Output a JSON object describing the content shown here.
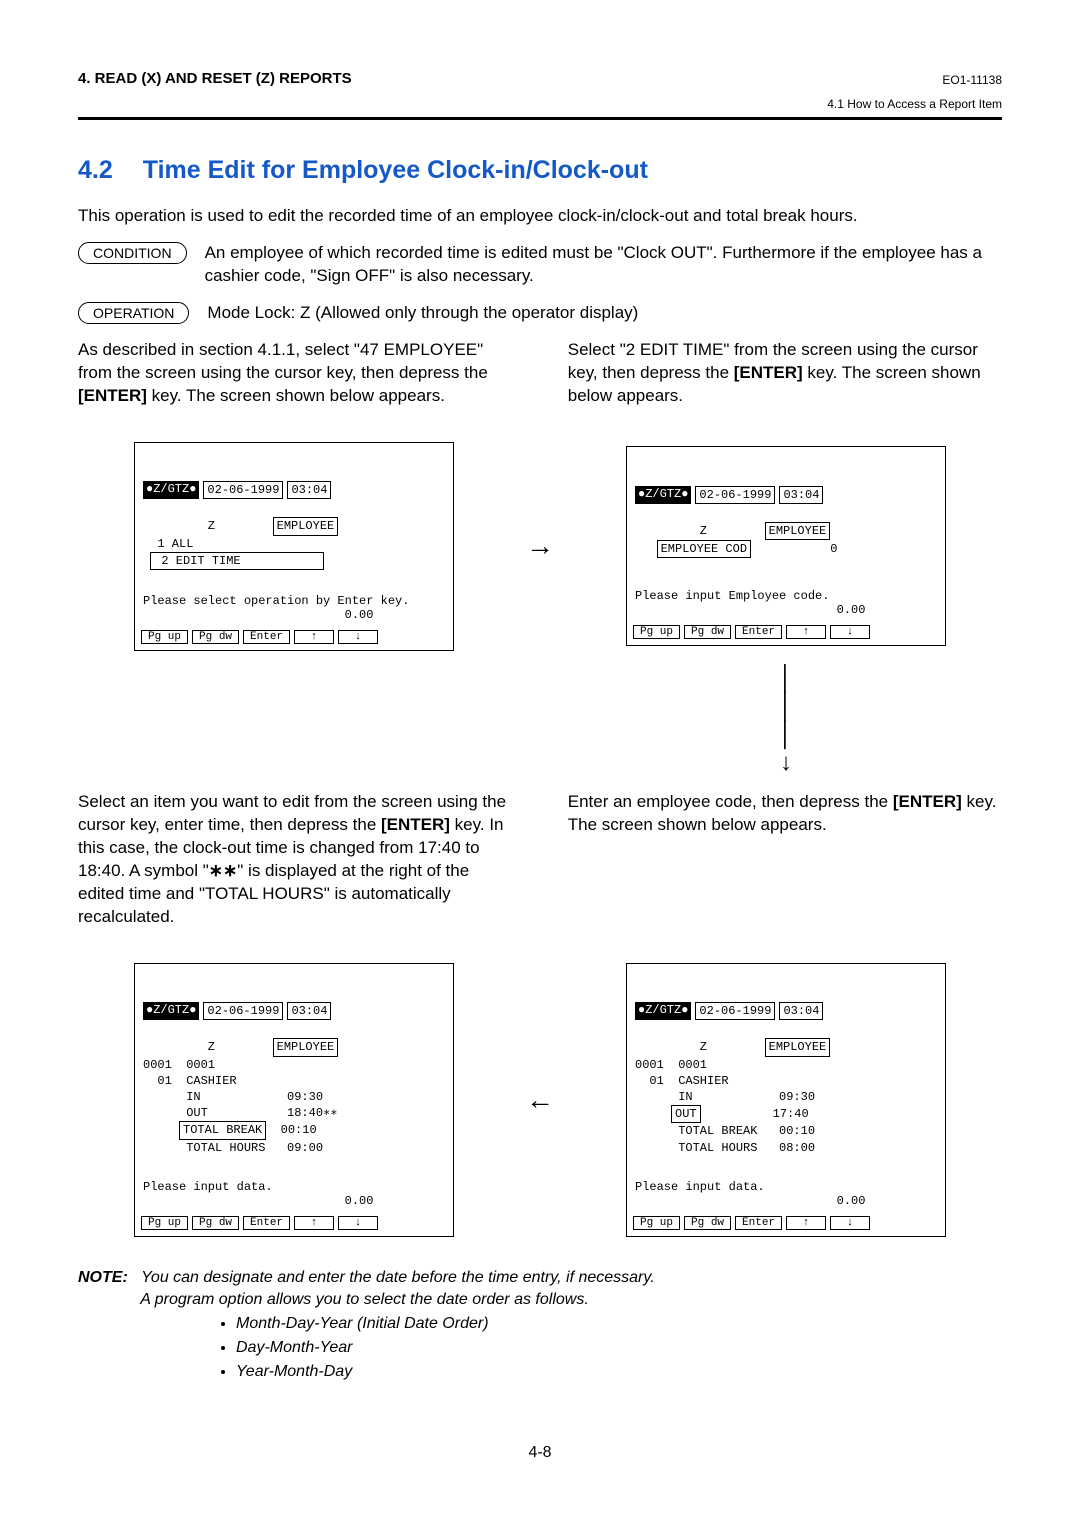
{
  "header": {
    "left": "4.   READ (X) AND RESET (Z) REPORTS",
    "right": "EO1-11138",
    "sub_right": "4.1  How to Access a Report Item"
  },
  "section": {
    "number": "4.2",
    "title": "Time Edit for Employee Clock-in/Clock-out"
  },
  "intro": "This operation is used to edit the recorded time of an employee clock-in/clock-out and total break hours.",
  "condition": {
    "label": "CONDITION",
    "text": "An employee of which recorded time is edited must be \"Clock OUT\". Furthermore if the employee has a cashier code, \"Sign OFF\" is also necessary."
  },
  "operation": {
    "label": "OPERATION",
    "text": "Mode Lock:  Z (Allowed only through the operator display)"
  },
  "left_para1_a": "As described in section 4.1.1, select \"47 EMPLOYEE\" from the screen using the cursor key, then depress the ",
  "left_para1_b": "[ENTER]",
  "left_para1_c": " key. The screen shown below appears.",
  "right_para1_a": "Select \"2 EDIT TIME\" from the screen using the cursor key, then depress the ",
  "right_para1_b": "[ENTER]",
  "right_para1_c": " key. The screen shown below appears.",
  "left_para2_a": "Select an item you want to edit from the screen using the cursor key, enter time, then depress the ",
  "left_para2_b": "[ENTER]",
  "left_para2_c": " key. In this case, the clock-out time is changed from 17:40 to 18:40. A symbol \"",
  "left_para2_d": "∗∗",
  "left_para2_e": "\" is displayed at the right of the edited time and \"TOTAL HOURS\" is automatically recalculated.",
  "right_para2_a": "Enter an employee code, then depress the ",
  "right_para2_b": "[ENTER]",
  "right_para2_c": " key. The screen shown below appears.",
  "topbar": {
    "a": "●Z/GTZ●",
    "b": "02-06-1999",
    "c": "03:04"
  },
  "screen1": {
    "body": " Z        |EMPLOYEE|\n  1 ALL\n | 2 EDIT TIME           |",
    "msg": "Please select operation by Enter key.\n                            0.00"
  },
  "screen2": {
    "body": " Z        |EMPLOYEE|\n   |EMPLOYEE COD|           0",
    "msg": "Please input Employee code.\n                            0.00"
  },
  "screen3": {
    "body": " Z        |EMPLOYEE|\n0001  0001\n  01  CASHIER\n      IN            09:30\n     |OUT|          17:40\n      TOTAL BREAK   00:10\n      TOTAL HOURS   08:00",
    "msg": "Please input data.\n                            0.00"
  },
  "screen4": {
    "body": " Z        |EMPLOYEE|\n0001  0001\n  01  CASHIER\n      IN            09:30\n      OUT           18:40∗∗\n     |TOTAL BREAK|  00:10\n      TOTAL HOURS   09:00",
    "msg": "Please input data.\n                            0.00"
  },
  "btns": {
    "pgup": "Pg up",
    "pgdw": "Pg dw",
    "enter": "Enter",
    "up": "↑",
    "down": "↓"
  },
  "note": {
    "label": "NOTE:",
    "line1": "You can designate and enter the date before the time entry, if necessary.",
    "line2": "A program option allows you to select the date order as follows.",
    "bullets": [
      "Month-Day-Year (Initial Date Order)",
      "Day-Month-Year",
      "Year-Month-Day"
    ]
  },
  "page_number": "4-8"
}
